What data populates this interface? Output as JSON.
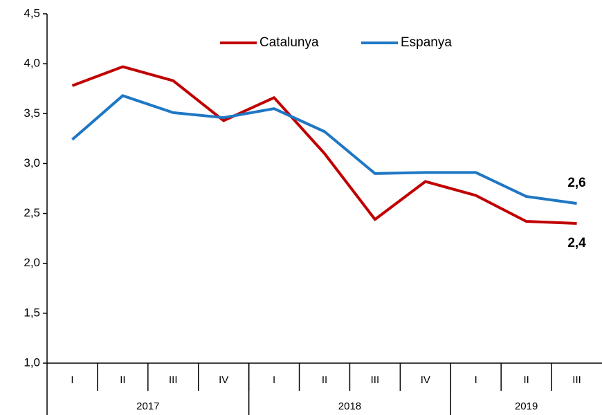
{
  "chart_data": {
    "type": "line",
    "categories": [
      "I",
      "II",
      "III",
      "IV",
      "I",
      "II",
      "III",
      "IV",
      "I",
      "II",
      "III"
    ],
    "groups": [
      {
        "label": "2017",
        "count": 4
      },
      {
        "label": "2018",
        "count": 4
      },
      {
        "label": "2019",
        "count": 3
      }
    ],
    "series": [
      {
        "name": "Catalunya",
        "color": "#c00000",
        "values": [
          3.78,
          3.97,
          3.83,
          3.43,
          3.66,
          3.1,
          2.44,
          2.82,
          2.68,
          2.42,
          2.4
        ],
        "value_labels": [
          null,
          null,
          null,
          null,
          null,
          null,
          null,
          null,
          null,
          null,
          "2,4"
        ]
      },
      {
        "name": "Espanya",
        "color": "#1f77c4",
        "values": [
          3.24,
          3.68,
          3.51,
          3.46,
          3.55,
          3.32,
          2.9,
          2.91,
          2.91,
          2.67,
          2.6
        ],
        "value_labels": [
          null,
          null,
          null,
          null,
          null,
          null,
          null,
          null,
          null,
          null,
          "2,6"
        ]
      }
    ],
    "ylim": [
      1.0,
      4.5
    ],
    "yticks": [
      {
        "value": 1.0,
        "label": "1,0"
      },
      {
        "value": 1.5,
        "label": "1,5"
      },
      {
        "value": 2.0,
        "label": "2,0"
      },
      {
        "value": 2.5,
        "label": "2,5"
      },
      {
        "value": 3.0,
        "label": "3,0"
      },
      {
        "value": 3.5,
        "label": "3,5"
      },
      {
        "value": 4.0,
        "label": "4,0"
      },
      {
        "value": 4.5,
        "label": "4,5"
      }
    ],
    "grid": false,
    "legend": "top"
  }
}
